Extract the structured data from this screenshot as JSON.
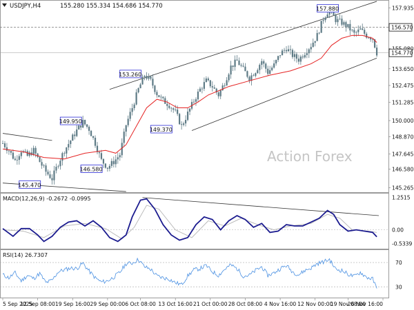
{
  "header": {
    "symbol": "USDJPY,H4",
    "ohlc": "155.280 155.334 154.686 154.770",
    "menu_icon": "triangle-down-icon"
  },
  "watermark": "Action Forex",
  "colors": {
    "candles": "#5d7a85",
    "ma": "#e52222",
    "channel": "#333333",
    "macd": "#1b1b8f",
    "signal": "#b5b5b5",
    "rsi": "#4a90e2",
    "levels": "#8c8c8c"
  },
  "chart_data": [
    {
      "panel": "price",
      "type": "candlestick",
      "y_ticks": [
        "157.935",
        "156.570",
        "155.080",
        "153.650",
        "152.475",
        "151.285",
        "150.000",
        "148.870",
        "147.645",
        "146.580",
        "145.265"
      ],
      "ylim": [
        145.1,
        158.3
      ],
      "current_price": "154.770",
      "reference_level": "156.570",
      "annotations": [
        {
          "text": "157.880",
          "value": 157.88
        },
        {
          "text": "153.260",
          "value": 153.26
        },
        {
          "text": "149.950",
          "value": 149.95
        },
        {
          "text": "149.370",
          "value": 149.37
        },
        {
          "text": "146.580",
          "value": 146.58
        },
        {
          "text": "145.470",
          "value": 145.47
        }
      ],
      "close_path": [
        [
          0,
          148.4
        ],
        [
          3,
          147.9
        ],
        [
          6,
          147.2
        ],
        [
          9,
          147.9
        ],
        [
          12,
          147.5
        ],
        [
          15,
          147.9
        ],
        [
          18,
          147.1
        ],
        [
          21,
          146.4
        ],
        [
          24,
          145.9
        ],
        [
          27,
          147.0
        ],
        [
          30,
          147.9
        ],
        [
          33,
          148.6
        ],
        [
          36,
          149.3
        ],
        [
          39,
          149.9
        ],
        [
          42,
          149.4
        ],
        [
          45,
          148.4
        ],
        [
          48,
          147.2
        ],
        [
          51,
          146.7
        ],
        [
          54,
          147.1
        ],
        [
          57,
          147.6
        ],
        [
          60,
          149.7
        ],
        [
          63,
          150.9
        ],
        [
          66,
          152.2
        ],
        [
          69,
          153.2
        ],
        [
          72,
          152.8
        ],
        [
          75,
          151.9
        ],
        [
          78,
          151.4
        ],
        [
          81,
          151.1
        ],
        [
          84,
          150.6
        ],
        [
          87,
          149.6
        ],
        [
          90,
          150.5
        ],
        [
          93,
          151.4
        ],
        [
          96,
          152.2
        ],
        [
          99,
          152.8
        ],
        [
          102,
          152.4
        ],
        [
          105,
          151.8
        ],
        [
          108,
          152.7
        ],
        [
          111,
          153.8
        ],
        [
          114,
          154.2
        ],
        [
          117,
          153.6
        ],
        [
          120,
          153.0
        ],
        [
          123,
          153.5
        ],
        [
          126,
          154.2
        ],
        [
          129,
          153.4
        ],
        [
          132,
          153.9
        ],
        [
          135,
          154.7
        ],
        [
          138,
          155.1
        ],
        [
          141,
          154.6
        ],
        [
          144,
          154.3
        ],
        [
          147,
          154.8
        ],
        [
          150,
          155.3
        ],
        [
          153,
          156.0
        ],
        [
          156,
          157.2
        ],
        [
          159,
          157.88
        ],
        [
          162,
          157.1
        ],
        [
          165,
          156.9
        ],
        [
          168,
          156.6
        ],
        [
          171,
          156.1
        ],
        [
          174,
          156.4
        ],
        [
          177,
          156.0
        ],
        [
          180,
          155.8
        ],
        [
          182,
          154.77
        ]
      ],
      "ma_path": [
        [
          0,
          148.0
        ],
        [
          10,
          147.8
        ],
        [
          20,
          147.4
        ],
        [
          30,
          147.3
        ],
        [
          40,
          147.7
        ],
        [
          50,
          147.9
        ],
        [
          55,
          147.7
        ],
        [
          60,
          148.3
        ],
        [
          65,
          149.6
        ],
        [
          70,
          150.9
        ],
        [
          75,
          151.5
        ],
        [
          80,
          151.3
        ],
        [
          85,
          150.9
        ],
        [
          90,
          150.9
        ],
        [
          95,
          151.3
        ],
        [
          100,
          151.8
        ],
        [
          110,
          152.4
        ],
        [
          120,
          152.8
        ],
        [
          130,
          153.2
        ],
        [
          140,
          153.5
        ],
        [
          150,
          154.0
        ],
        [
          155,
          154.4
        ],
        [
          160,
          155.3
        ],
        [
          165,
          155.8
        ],
        [
          170,
          156.0
        ],
        [
          175,
          156.0
        ],
        [
          180,
          155.8
        ],
        [
          182,
          155.5
        ]
      ],
      "channel_lines": [
        {
          "from": [
            52,
            152.2
          ],
          "to": [
            182,
            158.4
          ]
        },
        {
          "from": [
            92,
            149.3
          ],
          "to": [
            182,
            154.4
          ]
        },
        {
          "from": [
            0,
            149.1
          ],
          "to": [
            24,
            148.6
          ]
        },
        {
          "from": [
            0,
            145.6
          ],
          "to": [
            60,
            145.0
          ]
        }
      ]
    },
    {
      "panel": "macd",
      "type": "line",
      "label": "MACD(12,26,9) -0.2672 -0.0995",
      "y_ticks": [
        "1.2515",
        "0.00",
        "-0.5339"
      ],
      "ylim": [
        -0.65,
        1.35
      ],
      "series": [
        {
          "name": "MACD",
          "points": [
            [
              0,
              0.05
            ],
            [
              5,
              -0.25
            ],
            [
              9,
              0.05
            ],
            [
              13,
              0.05
            ],
            [
              17,
              -0.2
            ],
            [
              20,
              -0.45
            ],
            [
              24,
              -0.25
            ],
            [
              28,
              0.1
            ],
            [
              32,
              0.3
            ],
            [
              36,
              0.35
            ],
            [
              40,
              0.15
            ],
            [
              44,
              0.35
            ],
            [
              48,
              0.1
            ],
            [
              52,
              -0.3
            ],
            [
              56,
              -0.45
            ],
            [
              60,
              -0.2
            ],
            [
              63,
              0.5
            ],
            [
              67,
              1.15
            ],
            [
              70,
              1.2
            ],
            [
              74,
              0.8
            ],
            [
              78,
              0.2
            ],
            [
              82,
              -0.2
            ],
            [
              86,
              -0.4
            ],
            [
              90,
              -0.3
            ],
            [
              94,
              0.2
            ],
            [
              98,
              0.5
            ],
            [
              102,
              0.4
            ],
            [
              106,
              0.0
            ],
            [
              110,
              0.35
            ],
            [
              114,
              0.55
            ],
            [
              118,
              0.4
            ],
            [
              122,
              0.1
            ],
            [
              126,
              0.25
            ],
            [
              130,
              -0.1
            ],
            [
              134,
              -0.05
            ],
            [
              138,
              0.2
            ],
            [
              142,
              0.15
            ],
            [
              146,
              0.15
            ],
            [
              150,
              0.3
            ],
            [
              154,
              0.45
            ],
            [
              158,
              0.75
            ],
            [
              161,
              0.6
            ],
            [
              164,
              0.2
            ],
            [
              168,
              -0.05
            ],
            [
              172,
              0.0
            ],
            [
              176,
              -0.05
            ],
            [
              180,
              -0.1
            ],
            [
              182,
              -0.27
            ]
          ]
        },
        {
          "name": "Signal",
          "points": [
            [
              0,
              0.0
            ],
            [
              10,
              -0.05
            ],
            [
              20,
              -0.3
            ],
            [
              30,
              0.15
            ],
            [
              40,
              0.25
            ],
            [
              50,
              0.05
            ],
            [
              58,
              -0.35
            ],
            [
              64,
              0.1
            ],
            [
              70,
              0.95
            ],
            [
              76,
              0.8
            ],
            [
              84,
              0.0
            ],
            [
              92,
              -0.3
            ],
            [
              100,
              0.35
            ],
            [
              108,
              0.15
            ],
            [
              116,
              0.45
            ],
            [
              124,
              0.2
            ],
            [
              132,
              0.0
            ],
            [
              140,
              0.15
            ],
            [
              150,
              0.25
            ],
            [
              158,
              0.6
            ],
            [
              164,
              0.45
            ],
            [
              170,
              0.0
            ],
            [
              178,
              -0.05
            ],
            [
              182,
              -0.1
            ]
          ]
        }
      ]
    },
    {
      "panel": "rsi",
      "type": "line",
      "label": "RSI(14) 26.7307",
      "y_ticks": [
        "70",
        "30"
      ],
      "ylim": [
        15,
        88
      ],
      "series": [
        {
          "name": "RSI",
          "points": [
            [
              0,
              50
            ],
            [
              3,
              45
            ],
            [
              6,
              53
            ],
            [
              9,
              40
            ],
            [
              12,
              49
            ],
            [
              15,
              44
            ],
            [
              18,
              52
            ],
            [
              21,
              37
            ],
            [
              24,
              41
            ],
            [
              27,
              55
            ],
            [
              30,
              58
            ],
            [
              33,
              61
            ],
            [
              36,
              60
            ],
            [
              39,
              69
            ],
            [
              42,
              56
            ],
            [
              45,
              45
            ],
            [
              48,
              38
            ],
            [
              51,
              40
            ],
            [
              54,
              46
            ],
            [
              57,
              54
            ],
            [
              60,
              68
            ],
            [
              63,
              69
            ],
            [
              66,
              75
            ],
            [
              69,
              63
            ],
            [
              72,
              59
            ],
            [
              75,
              48
            ],
            [
              78,
              45
            ],
            [
              81,
              43
            ],
            [
              84,
              37
            ],
            [
              87,
              34
            ],
            [
              90,
              48
            ],
            [
              93,
              58
            ],
            [
              96,
              60
            ],
            [
              99,
              65
            ],
            [
              102,
              55
            ],
            [
              105,
              49
            ],
            [
              108,
              59
            ],
            [
              111,
              66
            ],
            [
              114,
              60
            ],
            [
              117,
              48
            ],
            [
              120,
              49
            ],
            [
              123,
              57
            ],
            [
              126,
              63
            ],
            [
              129,
              49
            ],
            [
              132,
              53
            ],
            [
              135,
              60
            ],
            [
              138,
              65
            ],
            [
              141,
              55
            ],
            [
              144,
              50
            ],
            [
              147,
              57
            ],
            [
              150,
              61
            ],
            [
              153,
              68
            ],
            [
              156,
              71
            ],
            [
              159,
              75
            ],
            [
              162,
              59
            ],
            [
              165,
              57
            ],
            [
              168,
              51
            ],
            [
              171,
              47
            ],
            [
              174,
              54
            ],
            [
              177,
              46
            ],
            [
              180,
              43
            ],
            [
              182,
              27
            ]
          ]
        }
      ]
    }
  ],
  "x_axis": {
    "labels": [
      "5 Sep 2025",
      "12 Sep 08:00",
      "19 Sep 16:00",
      "29 Sep 00:00",
      "6 Oct 08:00",
      "13 Oct 16:00",
      "21 Oct 00:00",
      "28 Oct 08:00",
      "4 Nov 16:00",
      "12 Nov 00:00",
      "19 Nov 08:00",
      "26 Nov 16:00"
    ],
    "label_bars": [
      0,
      17,
      34,
      51,
      67,
      84,
      101,
      118,
      135,
      152,
      168,
      185
    ]
  }
}
